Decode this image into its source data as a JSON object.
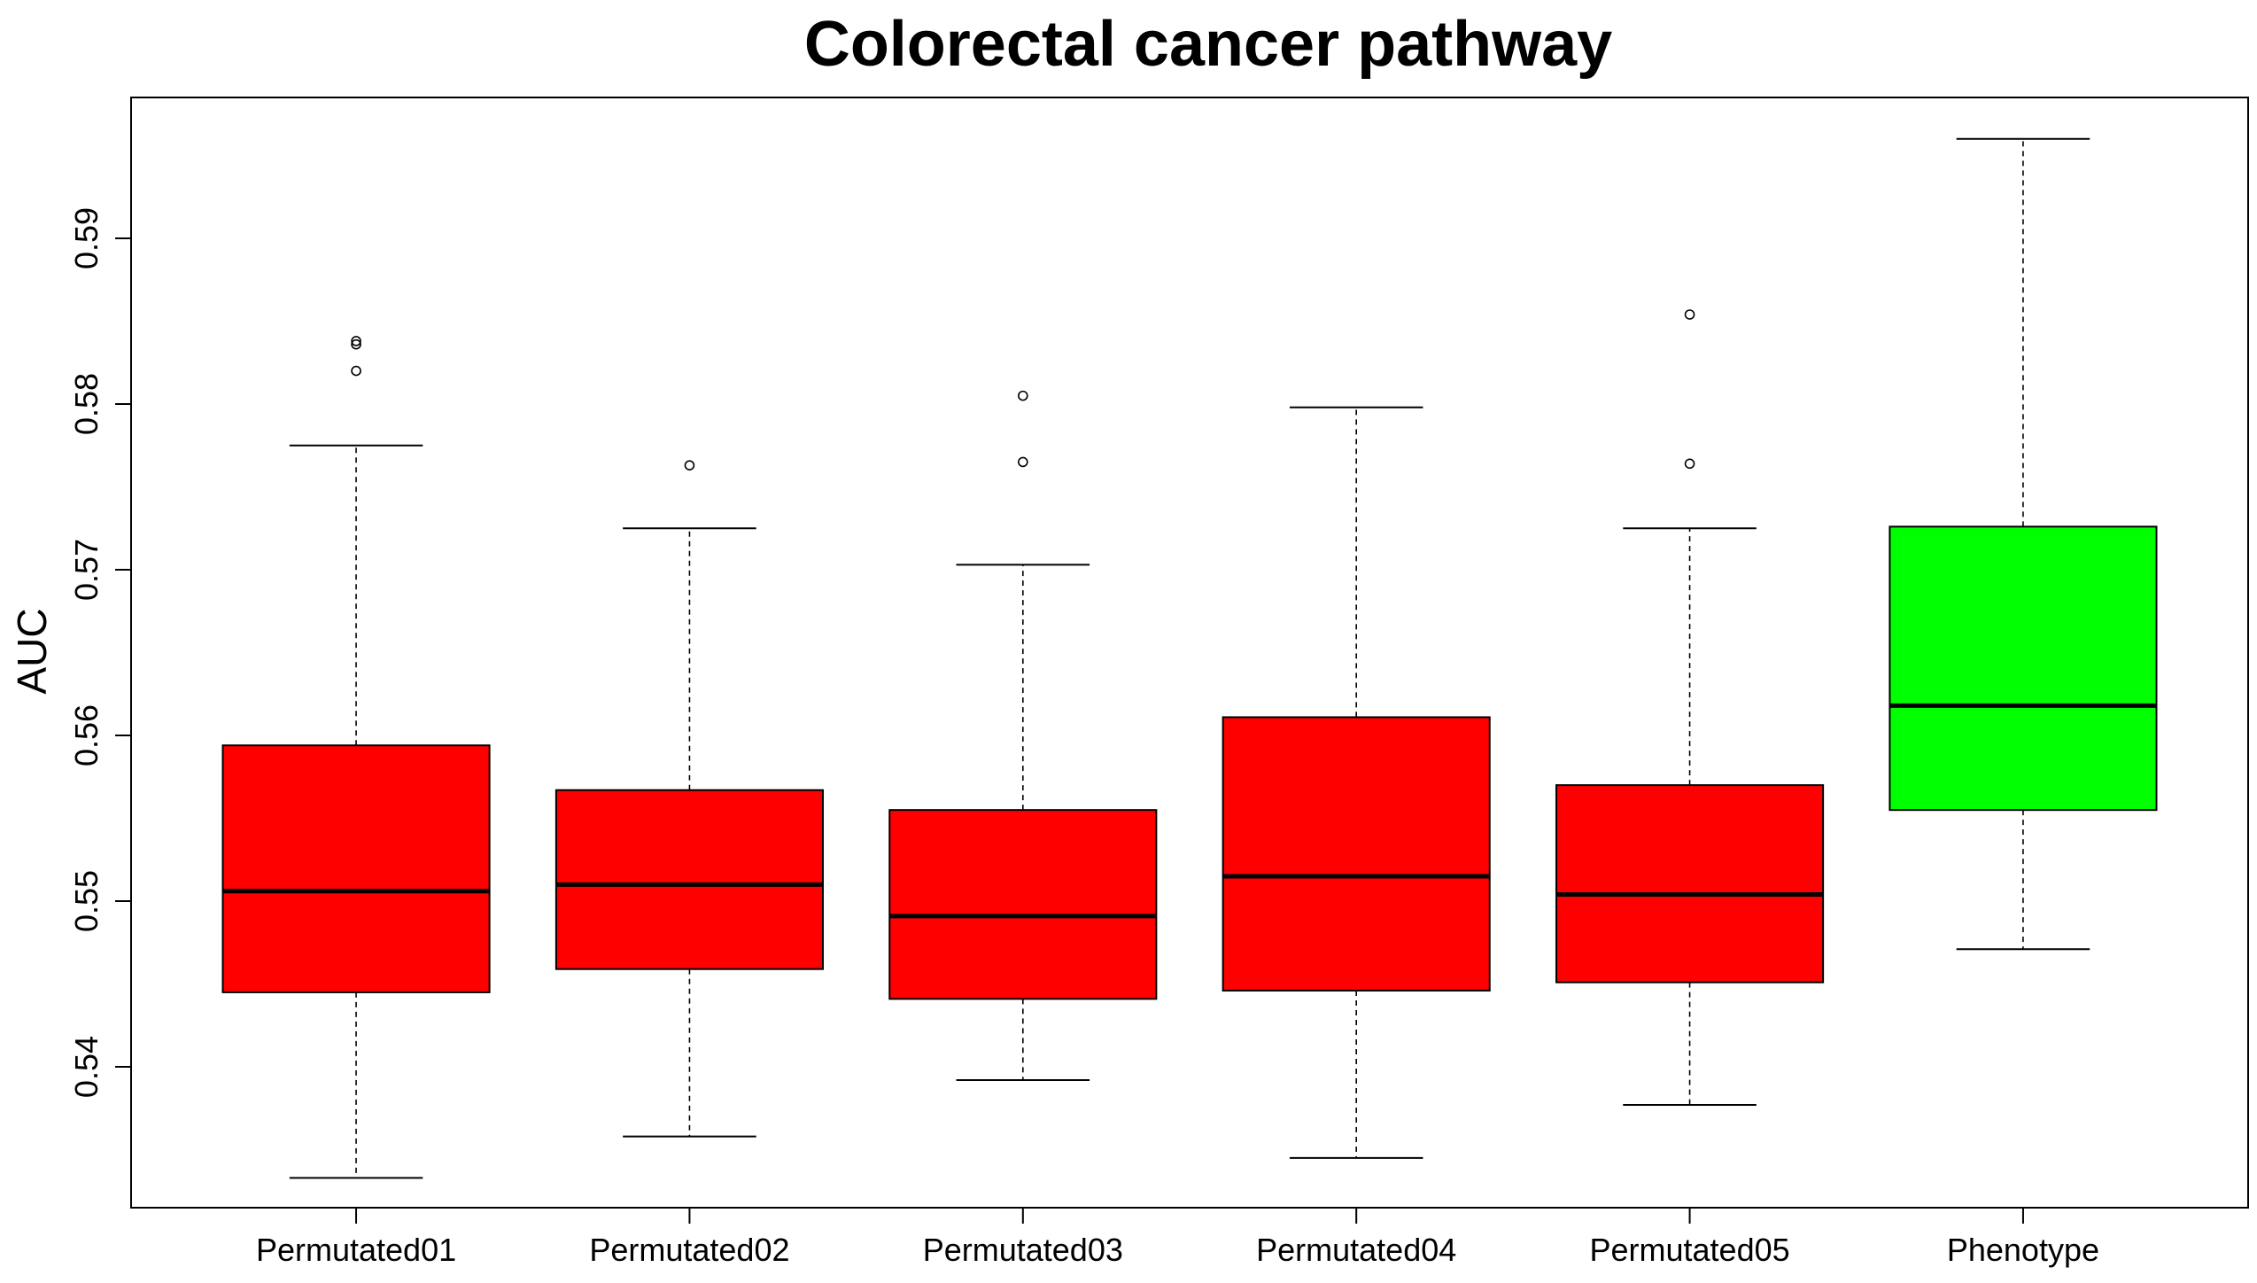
{
  "chart_data": {
    "type": "boxplot",
    "title": "Colorectal cancer pathway",
    "xlabel": "",
    "ylabel": "AUC",
    "ylim": [
      0.5315,
      0.5985
    ],
    "yticks": [
      0.54,
      0.55,
      0.56,
      0.57,
      0.58,
      0.59
    ],
    "ytick_labels": [
      "0.54",
      "0.55",
      "0.56",
      "0.57",
      "0.58",
      "0.59"
    ],
    "grid": false,
    "categories": [
      "Permutated01",
      "Permutated02",
      "Permutated03",
      "Permutated04",
      "Permutated05",
      "Phenotype"
    ],
    "boxes": [
      {
        "name": "Permutated01",
        "color": "#ff0000",
        "whisker_low": 0.5333,
        "q1": 0.5445,
        "median": 0.5506,
        "q3": 0.5594,
        "whisker_high": 0.5775,
        "outliers": [
          0.582,
          0.5836,
          0.5838
        ]
      },
      {
        "name": "Permutated02",
        "color": "#ff0000",
        "whisker_low": 0.5358,
        "q1": 0.5459,
        "median": 0.551,
        "q3": 0.5567,
        "whisker_high": 0.5725,
        "outliers": [
          0.5763
        ]
      },
      {
        "name": "Permutated03",
        "color": "#ff0000",
        "whisker_low": 0.5392,
        "q1": 0.5441,
        "median": 0.5491,
        "q3": 0.5555,
        "whisker_high": 0.5703,
        "outliers": [
          0.5765,
          0.5805
        ]
      },
      {
        "name": "Permutated04",
        "color": "#ff0000",
        "whisker_low": 0.5345,
        "q1": 0.5446,
        "median": 0.5515,
        "q3": 0.5611,
        "whisker_high": 0.5798,
        "outliers": []
      },
      {
        "name": "Permutated05",
        "color": "#ff0000",
        "whisker_low": 0.5377,
        "q1": 0.5451,
        "median": 0.5504,
        "q3": 0.557,
        "whisker_high": 0.5725,
        "outliers": [
          0.5764,
          0.5854
        ]
      },
      {
        "name": "Phenotype",
        "color": "#00ff00",
        "whisker_low": 0.5471,
        "q1": 0.5555,
        "median": 0.5618,
        "q3": 0.5726,
        "whisker_high": 0.596,
        "outliers": []
      }
    ]
  }
}
